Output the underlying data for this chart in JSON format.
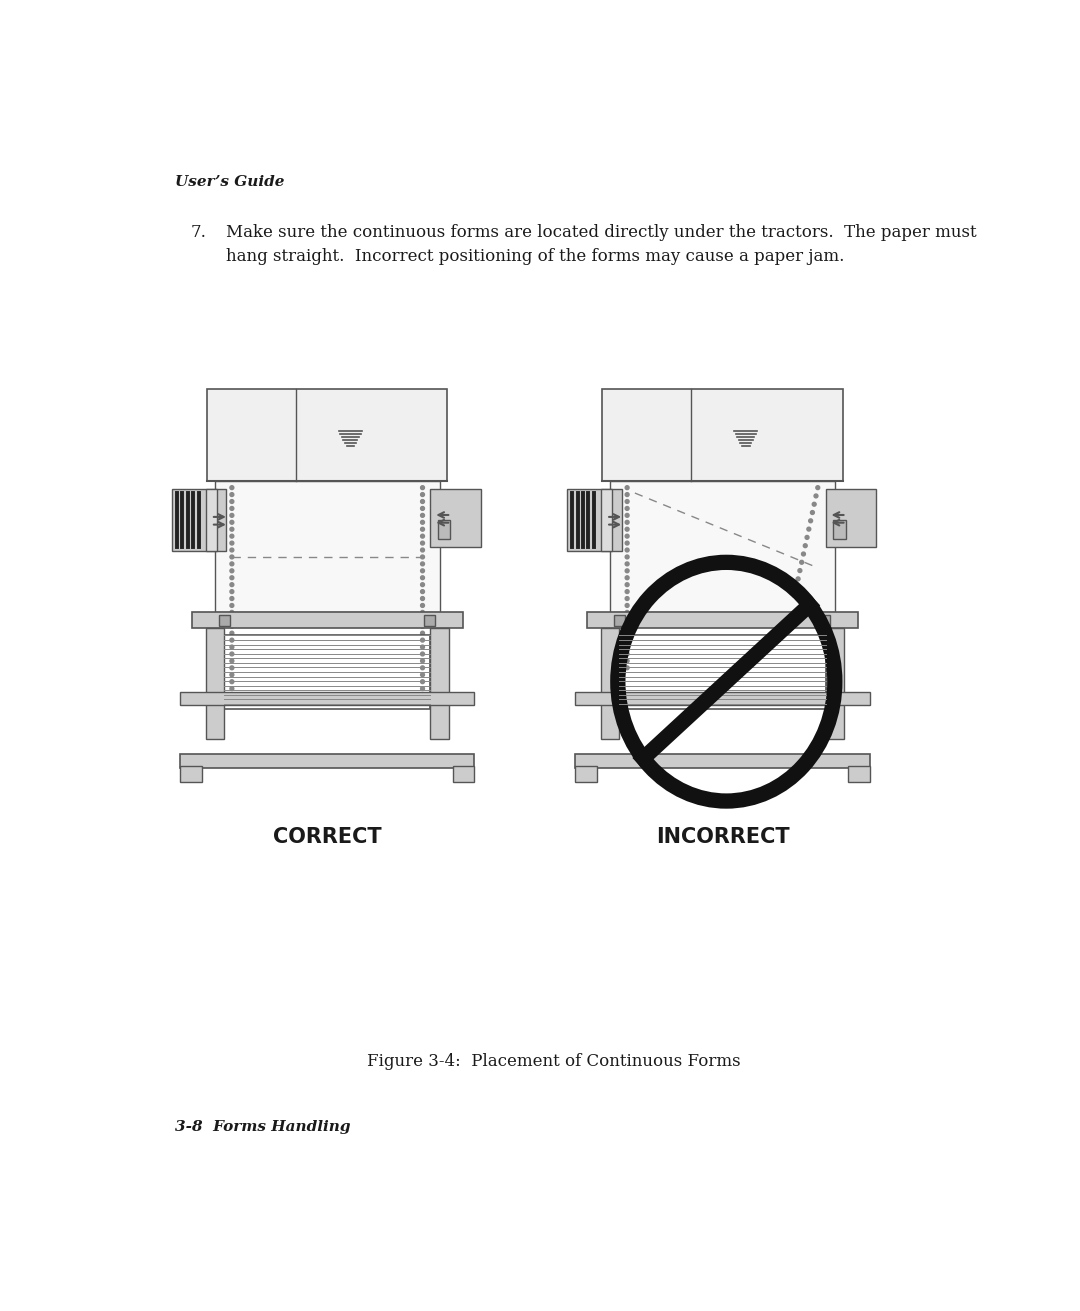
{
  "bg_color": "#ffffff",
  "header_text": "User’s Guide",
  "footer_text": "3-8  Forms Handling",
  "figure_caption": "Figure 3-4:  Placement of Continuous Forms",
  "body_text_num": "7.",
  "body_text": "Make sure the continuous forms are located directly under the tractors.  The paper must\nhang straight.  Incorrect positioning of the forms may cause a paper jam.",
  "correct_label": "CORRECT",
  "incorrect_label": "INCORRECT",
  "text_color": "#1a1a1a",
  "no_symbol_color": "#111111",
  "line_color": "#555555",
  "light_gray": "#c8c8c8",
  "mid_gray": "#999999"
}
